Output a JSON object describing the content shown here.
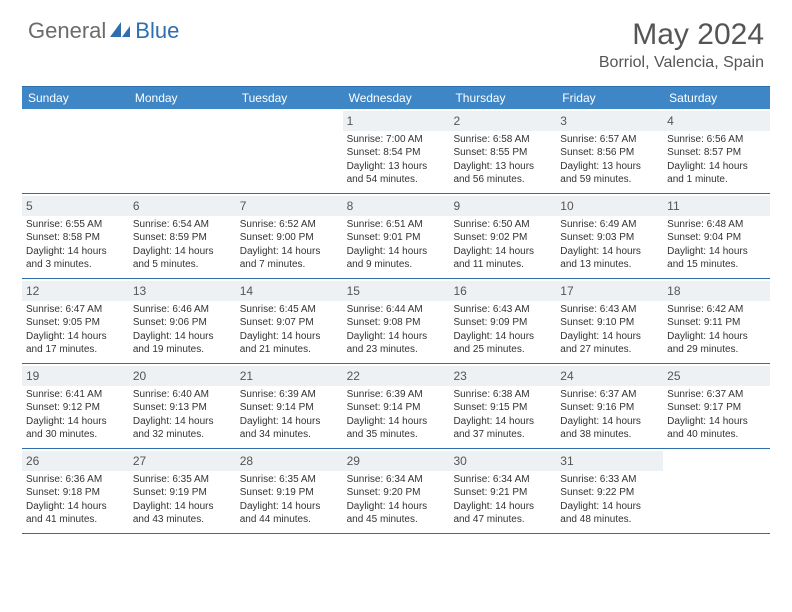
{
  "brand": {
    "part1": "General",
    "part2": "Blue"
  },
  "title": "May 2024",
  "location": "Borriol, Valencia, Spain",
  "colors": {
    "brand_blue": "#2f6fad",
    "header_bg": "#3f86c7",
    "rule": "#2f6fad",
    "daynum_bg": "#eef1f3",
    "text_gray": "#555555",
    "body_text": "#333333"
  },
  "weekdays": [
    "Sunday",
    "Monday",
    "Tuesday",
    "Wednesday",
    "Thursday",
    "Friday",
    "Saturday"
  ],
  "weeks": [
    [
      {
        "empty": true
      },
      {
        "empty": true
      },
      {
        "empty": true
      },
      {
        "day": "1",
        "sunrise": "Sunrise: 7:00 AM",
        "sunset": "Sunset: 8:54 PM",
        "daylight1": "Daylight: 13 hours",
        "daylight2": "and 54 minutes."
      },
      {
        "day": "2",
        "sunrise": "Sunrise: 6:58 AM",
        "sunset": "Sunset: 8:55 PM",
        "daylight1": "Daylight: 13 hours",
        "daylight2": "and 56 minutes."
      },
      {
        "day": "3",
        "sunrise": "Sunrise: 6:57 AM",
        "sunset": "Sunset: 8:56 PM",
        "daylight1": "Daylight: 13 hours",
        "daylight2": "and 59 minutes."
      },
      {
        "day": "4",
        "sunrise": "Sunrise: 6:56 AM",
        "sunset": "Sunset: 8:57 PM",
        "daylight1": "Daylight: 14 hours",
        "daylight2": "and 1 minute."
      }
    ],
    [
      {
        "day": "5",
        "sunrise": "Sunrise: 6:55 AM",
        "sunset": "Sunset: 8:58 PM",
        "daylight1": "Daylight: 14 hours",
        "daylight2": "and 3 minutes."
      },
      {
        "day": "6",
        "sunrise": "Sunrise: 6:54 AM",
        "sunset": "Sunset: 8:59 PM",
        "daylight1": "Daylight: 14 hours",
        "daylight2": "and 5 minutes."
      },
      {
        "day": "7",
        "sunrise": "Sunrise: 6:52 AM",
        "sunset": "Sunset: 9:00 PM",
        "daylight1": "Daylight: 14 hours",
        "daylight2": "and 7 minutes."
      },
      {
        "day": "8",
        "sunrise": "Sunrise: 6:51 AM",
        "sunset": "Sunset: 9:01 PM",
        "daylight1": "Daylight: 14 hours",
        "daylight2": "and 9 minutes."
      },
      {
        "day": "9",
        "sunrise": "Sunrise: 6:50 AM",
        "sunset": "Sunset: 9:02 PM",
        "daylight1": "Daylight: 14 hours",
        "daylight2": "and 11 minutes."
      },
      {
        "day": "10",
        "sunrise": "Sunrise: 6:49 AM",
        "sunset": "Sunset: 9:03 PM",
        "daylight1": "Daylight: 14 hours",
        "daylight2": "and 13 minutes."
      },
      {
        "day": "11",
        "sunrise": "Sunrise: 6:48 AM",
        "sunset": "Sunset: 9:04 PM",
        "daylight1": "Daylight: 14 hours",
        "daylight2": "and 15 minutes."
      }
    ],
    [
      {
        "day": "12",
        "sunrise": "Sunrise: 6:47 AM",
        "sunset": "Sunset: 9:05 PM",
        "daylight1": "Daylight: 14 hours",
        "daylight2": "and 17 minutes."
      },
      {
        "day": "13",
        "sunrise": "Sunrise: 6:46 AM",
        "sunset": "Sunset: 9:06 PM",
        "daylight1": "Daylight: 14 hours",
        "daylight2": "and 19 minutes."
      },
      {
        "day": "14",
        "sunrise": "Sunrise: 6:45 AM",
        "sunset": "Sunset: 9:07 PM",
        "daylight1": "Daylight: 14 hours",
        "daylight2": "and 21 minutes."
      },
      {
        "day": "15",
        "sunrise": "Sunrise: 6:44 AM",
        "sunset": "Sunset: 9:08 PM",
        "daylight1": "Daylight: 14 hours",
        "daylight2": "and 23 minutes."
      },
      {
        "day": "16",
        "sunrise": "Sunrise: 6:43 AM",
        "sunset": "Sunset: 9:09 PM",
        "daylight1": "Daylight: 14 hours",
        "daylight2": "and 25 minutes."
      },
      {
        "day": "17",
        "sunrise": "Sunrise: 6:43 AM",
        "sunset": "Sunset: 9:10 PM",
        "daylight1": "Daylight: 14 hours",
        "daylight2": "and 27 minutes."
      },
      {
        "day": "18",
        "sunrise": "Sunrise: 6:42 AM",
        "sunset": "Sunset: 9:11 PM",
        "daylight1": "Daylight: 14 hours",
        "daylight2": "and 29 minutes."
      }
    ],
    [
      {
        "day": "19",
        "sunrise": "Sunrise: 6:41 AM",
        "sunset": "Sunset: 9:12 PM",
        "daylight1": "Daylight: 14 hours",
        "daylight2": "and 30 minutes."
      },
      {
        "day": "20",
        "sunrise": "Sunrise: 6:40 AM",
        "sunset": "Sunset: 9:13 PM",
        "daylight1": "Daylight: 14 hours",
        "daylight2": "and 32 minutes."
      },
      {
        "day": "21",
        "sunrise": "Sunrise: 6:39 AM",
        "sunset": "Sunset: 9:14 PM",
        "daylight1": "Daylight: 14 hours",
        "daylight2": "and 34 minutes."
      },
      {
        "day": "22",
        "sunrise": "Sunrise: 6:39 AM",
        "sunset": "Sunset: 9:14 PM",
        "daylight1": "Daylight: 14 hours",
        "daylight2": "and 35 minutes."
      },
      {
        "day": "23",
        "sunrise": "Sunrise: 6:38 AM",
        "sunset": "Sunset: 9:15 PM",
        "daylight1": "Daylight: 14 hours",
        "daylight2": "and 37 minutes."
      },
      {
        "day": "24",
        "sunrise": "Sunrise: 6:37 AM",
        "sunset": "Sunset: 9:16 PM",
        "daylight1": "Daylight: 14 hours",
        "daylight2": "and 38 minutes."
      },
      {
        "day": "25",
        "sunrise": "Sunrise: 6:37 AM",
        "sunset": "Sunset: 9:17 PM",
        "daylight1": "Daylight: 14 hours",
        "daylight2": "and 40 minutes."
      }
    ],
    [
      {
        "day": "26",
        "sunrise": "Sunrise: 6:36 AM",
        "sunset": "Sunset: 9:18 PM",
        "daylight1": "Daylight: 14 hours",
        "daylight2": "and 41 minutes."
      },
      {
        "day": "27",
        "sunrise": "Sunrise: 6:35 AM",
        "sunset": "Sunset: 9:19 PM",
        "daylight1": "Daylight: 14 hours",
        "daylight2": "and 43 minutes."
      },
      {
        "day": "28",
        "sunrise": "Sunrise: 6:35 AM",
        "sunset": "Sunset: 9:19 PM",
        "daylight1": "Daylight: 14 hours",
        "daylight2": "and 44 minutes."
      },
      {
        "day": "29",
        "sunrise": "Sunrise: 6:34 AM",
        "sunset": "Sunset: 9:20 PM",
        "daylight1": "Daylight: 14 hours",
        "daylight2": "and 45 minutes."
      },
      {
        "day": "30",
        "sunrise": "Sunrise: 6:34 AM",
        "sunset": "Sunset: 9:21 PM",
        "daylight1": "Daylight: 14 hours",
        "daylight2": "and 47 minutes."
      },
      {
        "day": "31",
        "sunrise": "Sunrise: 6:33 AM",
        "sunset": "Sunset: 9:22 PM",
        "daylight1": "Daylight: 14 hours",
        "daylight2": "and 48 minutes."
      },
      {
        "empty": true
      }
    ]
  ]
}
